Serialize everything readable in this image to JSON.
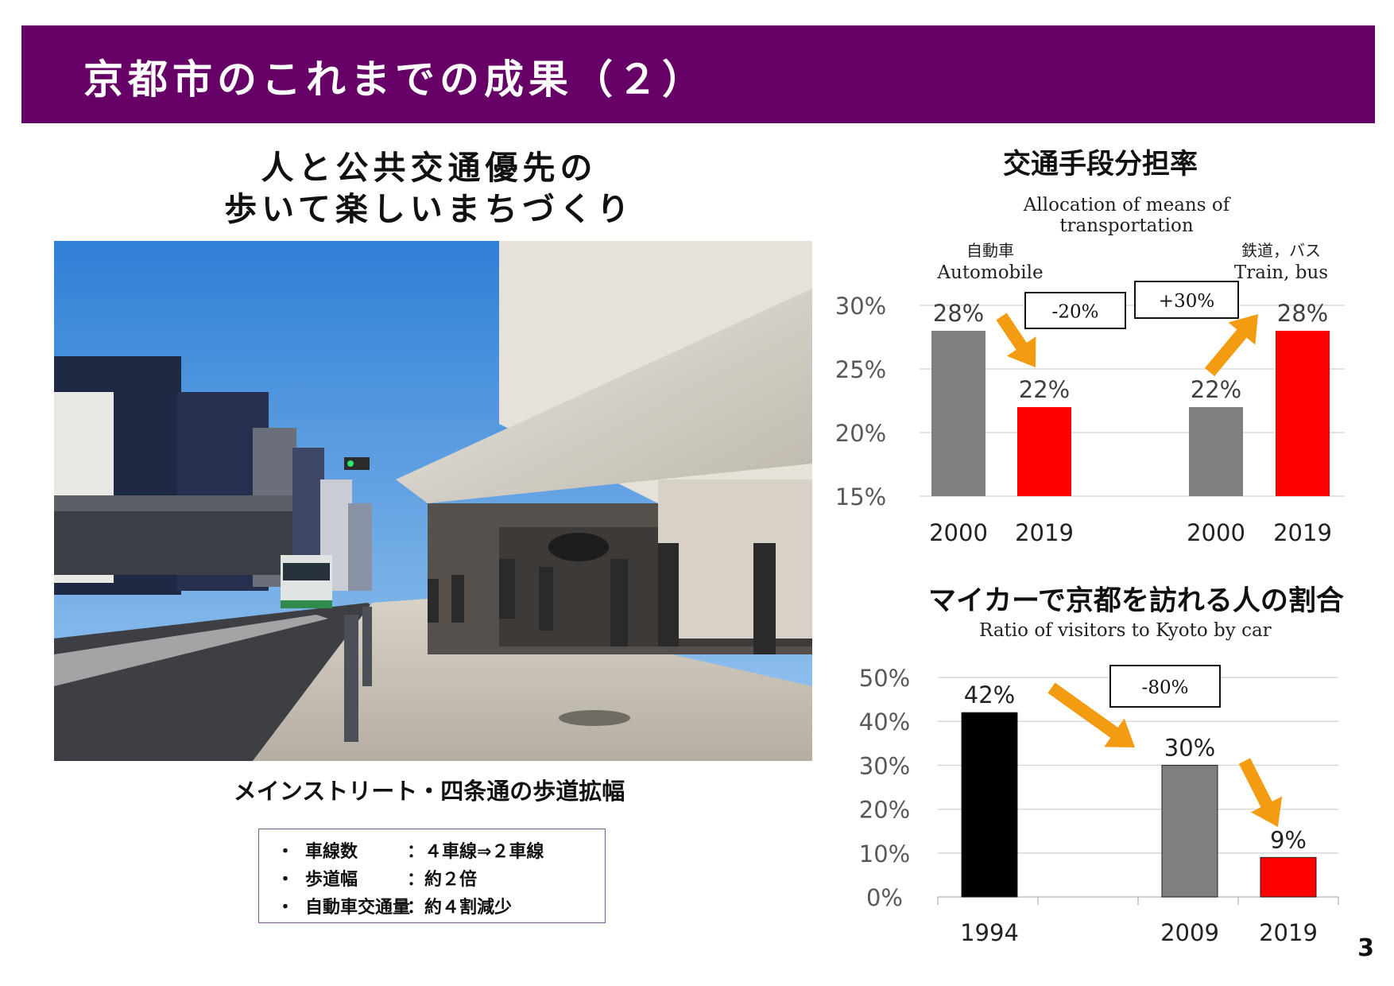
{
  "header": {
    "title": "京都市のこれまでの成果（２）"
  },
  "left": {
    "heading_line1": "人と公共交通優先の",
    "heading_line2": "歩いて楽しいまちづくり",
    "photo_caption": "メインストリート・四条通の歩道拡幅",
    "facts": [
      {
        "bullet": "・",
        "label": "車線数",
        "value": "：４車線⇒２車線"
      },
      {
        "bullet": "・",
        "label": "歩道幅",
        "value": "：約２倍"
      },
      {
        "bullet": "・",
        "label": "自動車交通量",
        "value": "：約４割減少"
      }
    ]
  },
  "page_number": "3",
  "colors": {
    "header": "#660066",
    "gray_bar": "#7f7f7f",
    "red_bar": "#ff0000",
    "black_bar": "#000000",
    "arrow": "#f39c12"
  },
  "chart_data": [
    {
      "type": "bar",
      "title": "交通手段分担率",
      "subtitle": "Allocation of means of transportation",
      "y_ticks": [
        "15%",
        "20%",
        "25%",
        "30%"
      ],
      "ylim": [
        15,
        30
      ],
      "grid": true,
      "groups": [
        {
          "label_ja": "自動車",
          "label_en": "Automobile",
          "change": "-20%",
          "bars": [
            {
              "x": "2000",
              "value": 28,
              "label": "28%",
              "color": "gray"
            },
            {
              "x": "2019",
              "value": 22,
              "label": "22%",
              "color": "red"
            }
          ]
        },
        {
          "label_ja": "鉄道，バス",
          "label_en": "Train, bus",
          "change": "+30%",
          "bars": [
            {
              "x": "2000",
              "value": 22,
              "label": "22%",
              "color": "gray"
            },
            {
              "x": "2019",
              "value": 28,
              "label": "28%",
              "color": "red"
            }
          ]
        }
      ]
    },
    {
      "type": "bar",
      "title": "マイカーで京都を訪れる人の割合",
      "subtitle": "Ratio of visitors to Kyoto by car",
      "y_ticks": [
        "0%",
        "10%",
        "20%",
        "30%",
        "40%",
        "50%"
      ],
      "ylim": [
        0,
        50
      ],
      "grid": true,
      "change": "-80%",
      "bars": [
        {
          "x": "1994",
          "value": 42,
          "label": "42%",
          "color": "black"
        },
        {
          "x": "2009",
          "value": 30,
          "label": "30%",
          "color": "gray"
        },
        {
          "x": "2019",
          "value": 9,
          "label": "9%",
          "color": "red"
        }
      ]
    }
  ]
}
